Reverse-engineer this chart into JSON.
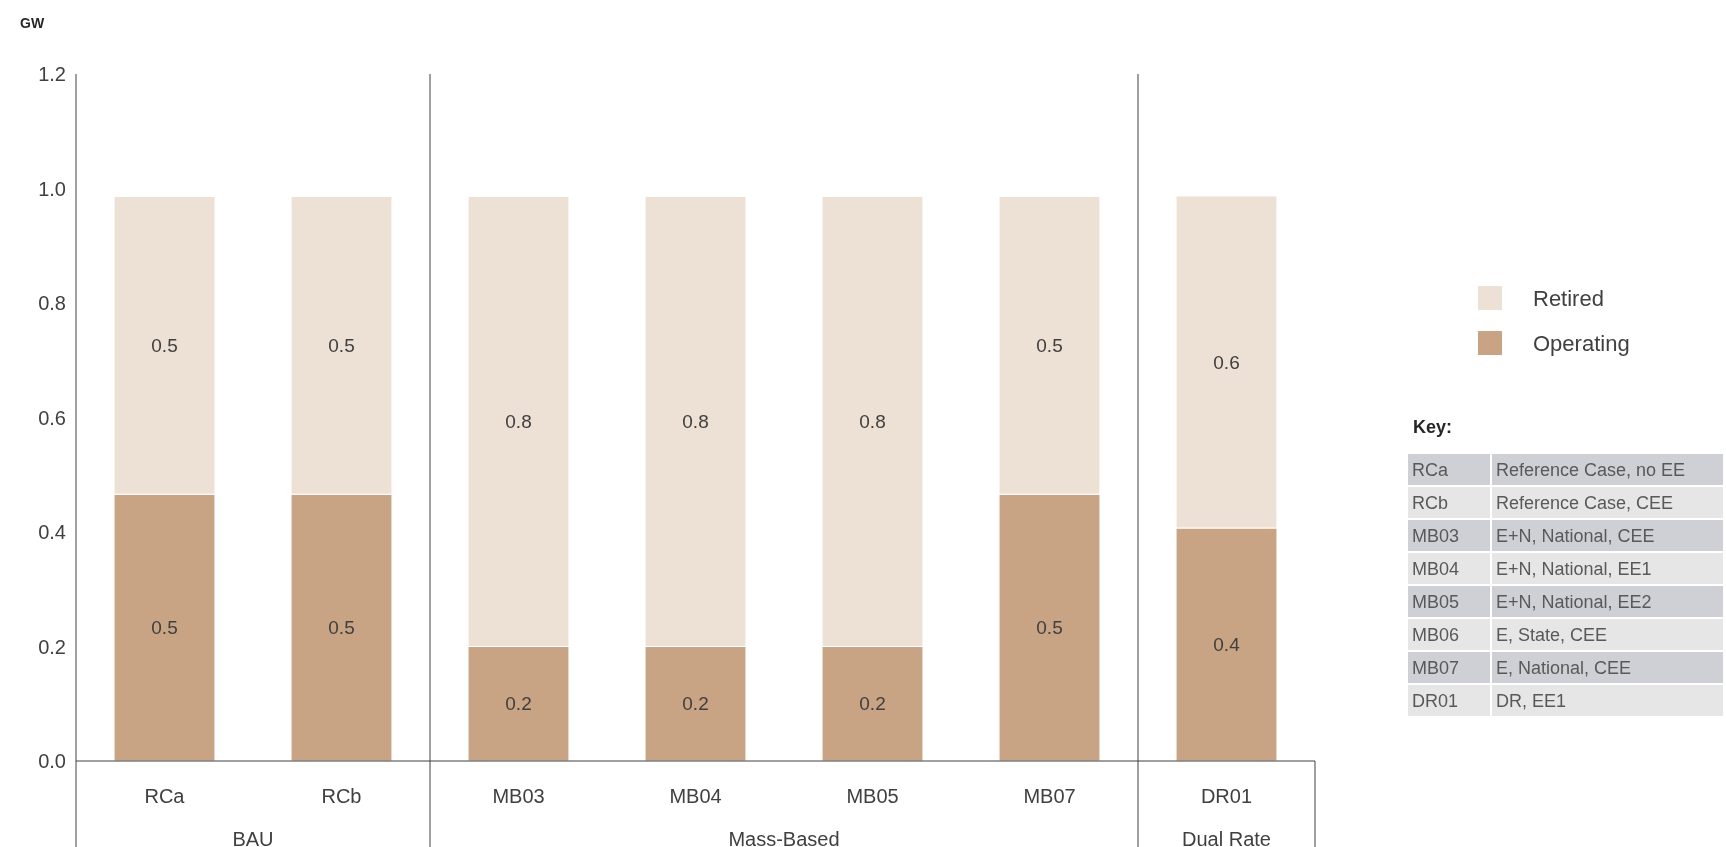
{
  "chart_data": {
    "type": "bar",
    "stacked": true,
    "ylabel": "GW",
    "categories": [
      "RCa",
      "RCb",
      "MB03",
      "MB04",
      "MB05",
      "MB07",
      "DR01"
    ],
    "series": [
      {
        "name": "Operating",
        "color": "#c8a484",
        "values": [
          0.466,
          0.466,
          0.2,
          0.2,
          0.2,
          0.466,
          0.407
        ],
        "value_labels": [
          "0.5",
          "0.5",
          "0.2",
          "0.2",
          "0.2",
          "0.5",
          "0.4"
        ]
      },
      {
        "name": "Retired",
        "color": "#ede0d5",
        "values": [
          0.52,
          0.52,
          0.786,
          0.786,
          0.786,
          0.52,
          0.58
        ],
        "value_labels": [
          "0.5",
          "0.5",
          "0.8",
          "0.8",
          "0.8",
          "0.5",
          "0.6"
        ]
      }
    ],
    "ylim": [
      0,
      1.2
    ],
    "yticks": [
      {
        "value": 0,
        "label": "0.0"
      },
      {
        "value": 0.2,
        "label": "0.2"
      },
      {
        "value": 0.4,
        "label": "0.4"
      },
      {
        "value": 0.6,
        "label": "0.6"
      },
      {
        "value": 0.8,
        "label": "0.8"
      },
      {
        "value": 1,
        "label": "1.0"
      },
      {
        "value": 1.2,
        "label": "1.2"
      }
    ],
    "legend": "right",
    "grid": false,
    "annotations": [
      "BAU",
      "Mass-Based",
      "Dual Rate",
      "Key:",
      "RCa",
      "Reference Case, no EE",
      "RCb",
      "Reference Case, CEE",
      "MB03",
      "E+N, National, CEE",
      "MB04",
      "E+N, National, EE1",
      "MB05",
      "E+N, National, EE2",
      "MB06",
      "E, State, CEE",
      "MB07",
      "E, National, CEE",
      "DR01",
      "DR, EE1"
    ]
  }
}
